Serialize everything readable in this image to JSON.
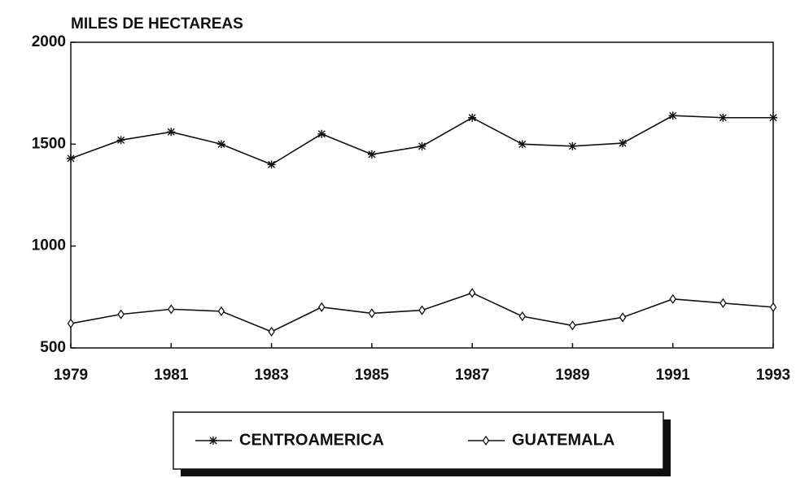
{
  "chart_data": {
    "type": "line",
    "y_axis_label": "MILES DE HECTAREAS",
    "x": [
      1979,
      1980,
      1981,
      1982,
      1983,
      1984,
      1985,
      1986,
      1987,
      1988,
      1989,
      1990,
      1991,
      1992,
      1993
    ],
    "xlim": [
      1979,
      1993
    ],
    "xticks": [
      1979,
      1981,
      1983,
      1985,
      1987,
      1989,
      1991,
      1993
    ],
    "ylim": [
      500,
      2000
    ],
    "yticks": [
      500,
      1000,
      1500,
      2000
    ],
    "grid": false,
    "legend": "bottom",
    "series": [
      {
        "name": "CENTROAMERICA",
        "color": "#111111",
        "marker": "asterisk",
        "values": [
          1430,
          1520,
          1560,
          1500,
          1400,
          1550,
          1450,
          1490,
          1630,
          1500,
          1490,
          1505,
          1640,
          1630,
          1630
        ]
      },
      {
        "name": "GUATEMALA",
        "color": "#111111",
        "marker": "diamond",
        "values": [
          620,
          665,
          690,
          680,
          580,
          700,
          670,
          685,
          770,
          655,
          610,
          650,
          740,
          720,
          700
        ]
      }
    ]
  }
}
